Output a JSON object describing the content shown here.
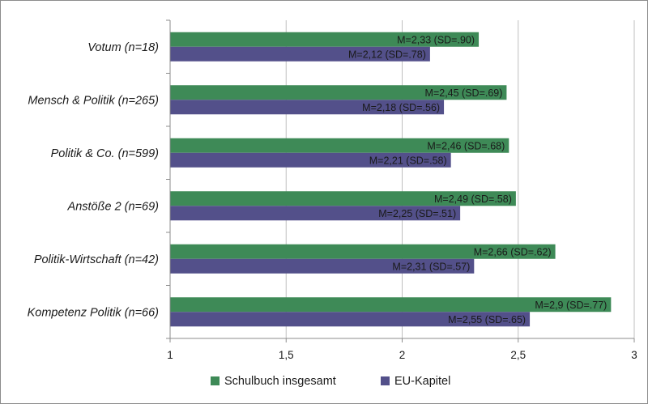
{
  "chart_data": {
    "type": "bar",
    "orientation": "horizontal",
    "categories": [
      "Votum (n=18)",
      "Mensch & Politik (n=265)",
      "Politik & Co. (n=599)",
      "Anstöße 2 (n=69)",
      "Politik-Wirtschaft (n=42)",
      "Kompetenz Politik (n=66)"
    ],
    "series": [
      {
        "name": "Schulbuch insgesamt",
        "color": "#3e8a57",
        "values": [
          2.33,
          2.45,
          2.46,
          2.49,
          2.66,
          2.9
        ],
        "labels": [
          "M=2,33 (SD=.90)",
          "M=2,45 (SD=.69)",
          "M=2,46 (SD=.68)",
          "M=2,49 (SD=.58)",
          "M=2,66 (SD=.62)",
          "M=2,9 (SD=.77)"
        ]
      },
      {
        "name": "EU-Kapitel",
        "color": "#53508a",
        "values": [
          2.12,
          2.18,
          2.21,
          2.25,
          2.31,
          2.55
        ],
        "labels": [
          "M=2,12 (SD=.78)",
          "M=2,18 (SD=.56)",
          "M=2,21 (SD=.58)",
          "M=2,25 (SD=.51)",
          "M=2,31 (SD=.57)",
          "M=2,55 (SD=.65)"
        ]
      }
    ],
    "xlim": [
      1,
      3
    ],
    "xticks": [
      1,
      1.5,
      2,
      2.5,
      3
    ],
    "xtick_labels": [
      "1",
      "1,5",
      "2",
      "2,5",
      "3"
    ],
    "grid": "vertical",
    "legend": "bottom",
    "title": "",
    "xlabel": "",
    "ylabel": ""
  }
}
